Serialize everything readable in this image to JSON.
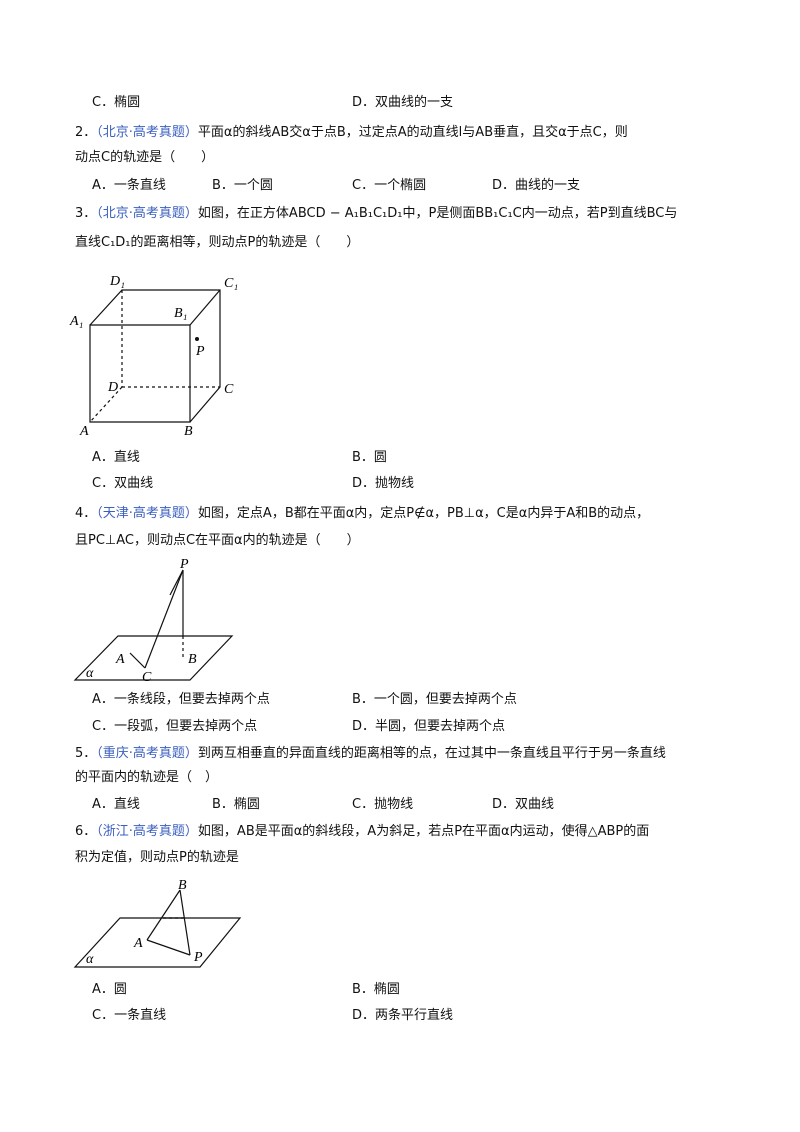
{
  "continued_options": [
    [
      "C．椭圆",
      "D．双曲线的一支"
    ]
  ],
  "questions": [
    {
      "number": "2．",
      "source": "（北京·高考真题）",
      "stem": [
        "平面α的斜线AB交α于点B，过定点A的动直线l与AB垂直，且交α于点C，则",
        "动点C的轨迹是（　　）"
      ],
      "options": [
        [
          "A．一条直线",
          "B．一个圆",
          "C．一个椭圆",
          "D．曲线的一支"
        ]
      ]
    },
    {
      "number": "3．",
      "source": "（北京·高考真题）",
      "stem": [
        "如图，在正方体ABCD − A₁B₁C₁D₁中，P是侧面BB₁C₁C内一动点，若P到直线BC与",
        "直线C₁D₁的距离相等，则动点P的轨迹是（　　）"
      ],
      "figure": {
        "labels": [
          "D₁",
          "C₁",
          "A₁",
          "B₁",
          "P",
          "D",
          "C",
          "A",
          "B"
        ]
      },
      "options": [
        [
          "A．直线",
          "B．圆"
        ],
        [
          "C．双曲线",
          "D．抛物线"
        ]
      ]
    },
    {
      "number": "4．",
      "source": "（天津·高考真题）",
      "stem": [
        "如图，定点A，B都在平面α内，定点P∉α，PB⊥α，C是α内异于A和B的动点，",
        "且PC⊥AC，则动点C在平面α内的轨迹是（　　）"
      ],
      "figure": {
        "labels": [
          "P",
          "A",
          "C",
          "B",
          "α"
        ]
      },
      "options": [
        [
          "A．一条线段，但要去掉两个点",
          "B．一个圆，但要去掉两个点"
        ],
        [
          "C．一段弧，但要去掉两个点",
          "D．半圆，但要去掉两个点"
        ]
      ]
    },
    {
      "number": "5．",
      "source": "（重庆·高考真题）",
      "stem": [
        "到两互相垂直的异面直线的距离相等的点，在过其中一条直线且平行于另一条直线",
        "的平面内的轨迹是（　）"
      ],
      "options": [
        [
          "A．直线",
          "B．椭圆",
          "C．抛物线",
          "D．双曲线"
        ]
      ]
    },
    {
      "number": "6．",
      "source": "（浙江·高考真题）",
      "stem": [
        "如图，AB是平面α的斜线段，A为斜足，若点P在平面α内运动，使得△ABP的面",
        "积为定值，则动点P的轨迹是"
      ],
      "figure": {
        "labels": [
          "B",
          "A",
          "P",
          "α"
        ]
      },
      "options": [
        [
          "A．圆",
          "B．椭圆"
        ],
        [
          "C．一条直线",
          "D．两条平行直线"
        ]
      ]
    }
  ]
}
